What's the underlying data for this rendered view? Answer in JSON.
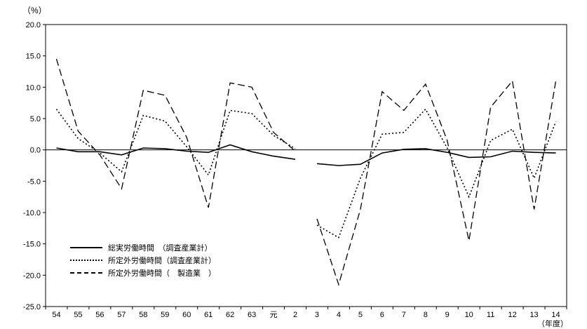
{
  "page": {
    "background": "#ffffff",
    "line_color": "#000000"
  },
  "chart_data": {
    "type": "line",
    "title": "",
    "legend_position": "inside-lower-left",
    "grid": "zero-line-only",
    "line_color": "#000000",
    "y_axis": {
      "unit": "（%）",
      "min": -25.0,
      "max": 20.0,
      "tick_step": 5.0,
      "ticks": [
        "20.0",
        "15.0",
        "10.0",
        "5.0",
        "0.0",
        "-5.0",
        "-10.0",
        "-15.0",
        "-20.0",
        "-25.0"
      ]
    },
    "x_axis": {
      "unit": "（年度）",
      "categories": [
        "54",
        "55",
        "56",
        "57",
        "58",
        "59",
        "60",
        "61",
        "62",
        "63",
        "元",
        "2",
        "3",
        "4",
        "5",
        "6",
        "7",
        "8",
        "9",
        "10",
        "11",
        "12",
        "13",
        "14"
      ]
    },
    "gap_after_index": 11,
    "series": [
      {
        "name": "総実労働時間　（調査産業計）",
        "style": "solid",
        "values": [
          0.3,
          -0.3,
          -0.3,
          -0.8,
          0.3,
          0.2,
          -0.2,
          -0.4,
          0.8,
          -0.3,
          -1.0,
          -1.5,
          -2.2,
          -2.5,
          -2.3,
          -0.5,
          0.1,
          0.2,
          -0.4,
          -1.2,
          -1.1,
          -0.2,
          -0.4,
          -0.5
        ]
      },
      {
        "name": "所定外労働時間（調査産業計）",
        "style": "dotted",
        "values": [
          6.5,
          1.8,
          -0.5,
          -3.5,
          5.5,
          4.6,
          0.5,
          -4.0,
          6.3,
          5.8,
          2.3,
          0.2,
          -12.0,
          -14.0,
          -4.5,
          2.5,
          2.8,
          6.5,
          0.3,
          -7.5,
          1.5,
          3.3,
          -4.5,
          4.5
        ]
      },
      {
        "name": "所定外労働時間（　製造業　）",
        "style": "dashed",
        "values": [
          14.5,
          3.0,
          -0.8,
          -6.2,
          9.5,
          8.7,
          2.0,
          -9.2,
          10.7,
          10.0,
          2.8,
          -0.2,
          -11.0,
          -21.5,
          -9.5,
          9.3,
          6.3,
          10.5,
          1.5,
          -14.5,
          6.8,
          11.0,
          -9.5,
          11.0
        ]
      }
    ]
  }
}
